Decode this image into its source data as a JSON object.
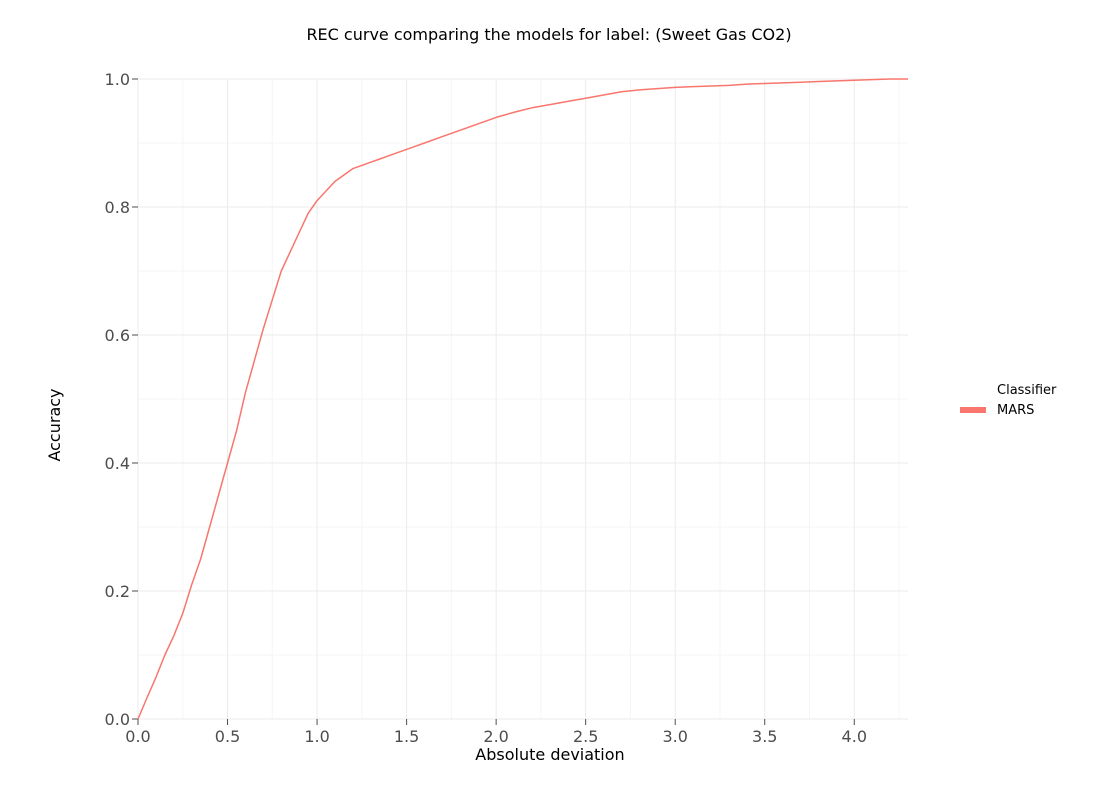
{
  "chart_data": {
    "type": "line",
    "title": "REC curve comparing the models for label: (Sweet Gas CO2)",
    "xlabel": "Absolute deviation",
    "ylabel": "Accuracy",
    "xlim": [
      0,
      4.3
    ],
    "ylim": [
      0,
      1.0
    ],
    "x_ticks": [
      0.0,
      0.5,
      1.0,
      1.5,
      2.0,
      2.5,
      3.0,
      3.5,
      4.0
    ],
    "x_tick_labels": [
      "0.0",
      "0.5",
      "1.0",
      "1.5",
      "2.0",
      "2.5",
      "3.0",
      "3.5",
      "4.0"
    ],
    "y_ticks": [
      0.0,
      0.2,
      0.4,
      0.6,
      0.8,
      1.0
    ],
    "y_tick_labels": [
      "0.0",
      "0.2",
      "0.4",
      "0.6",
      "0.8",
      "1.0"
    ],
    "grid": true,
    "legend": {
      "title": "Classifier",
      "position": "right"
    },
    "series": [
      {
        "name": "MARS",
        "color": "#f8766d",
        "x": [
          0.0,
          0.05,
          0.1,
          0.15,
          0.2,
          0.25,
          0.3,
          0.35,
          0.4,
          0.45,
          0.5,
          0.55,
          0.6,
          0.65,
          0.7,
          0.75,
          0.8,
          0.85,
          0.9,
          0.95,
          1.0,
          1.05,
          1.1,
          1.15,
          1.2,
          1.25,
          1.3,
          1.35,
          1.4,
          1.45,
          1.5,
          1.55,
          1.6,
          1.7,
          1.8,
          1.9,
          2.0,
          2.1,
          2.2,
          2.3,
          2.4,
          2.5,
          2.6,
          2.7,
          2.8,
          2.9,
          3.0,
          3.1,
          3.2,
          3.3,
          3.4,
          3.5,
          3.6,
          3.7,
          3.8,
          3.9,
          4.0,
          4.1,
          4.2,
          4.3
        ],
        "y": [
          0.0,
          0.033,
          0.065,
          0.1,
          0.13,
          0.165,
          0.21,
          0.25,
          0.3,
          0.35,
          0.4,
          0.45,
          0.51,
          0.56,
          0.61,
          0.655,
          0.7,
          0.73,
          0.76,
          0.79,
          0.81,
          0.825,
          0.84,
          0.85,
          0.86,
          0.865,
          0.87,
          0.875,
          0.88,
          0.885,
          0.89,
          0.895,
          0.9,
          0.91,
          0.92,
          0.93,
          0.94,
          0.948,
          0.955,
          0.96,
          0.965,
          0.97,
          0.975,
          0.98,
          0.983,
          0.985,
          0.987,
          0.988,
          0.989,
          0.99,
          0.992,
          0.993,
          0.994,
          0.995,
          0.996,
          0.997,
          0.998,
          0.999,
          1.0,
          1.0
        ]
      }
    ]
  }
}
